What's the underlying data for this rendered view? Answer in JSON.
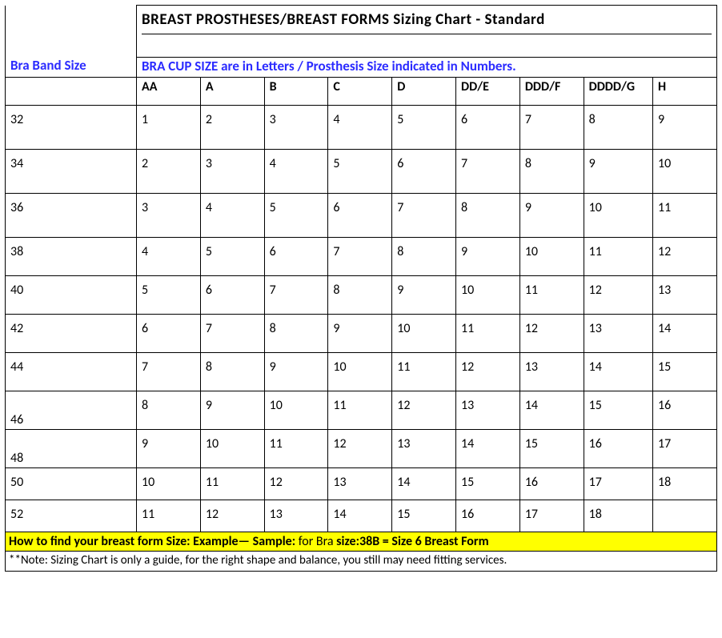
{
  "title": "BREAST PROSTHESES/BREAST FORMS Sizing Chart - Standard",
  "bandLabel": "Bra Band Size",
  "cupLabel": "BRA CUP SIZE are in Letters  / Prosthesis Size indicated in Numbers.",
  "columns": [
    "AA",
    "A",
    "B",
    "C",
    "D",
    "DD/E",
    "DDD/F",
    "DDDD/G",
    "H"
  ],
  "rows": [
    {
      "band": "32",
      "vals": [
        "1",
        "2",
        "3",
        "4",
        "5",
        "6",
        "7",
        "8",
        "9"
      ]
    },
    {
      "band": "34",
      "vals": [
        "2",
        "3",
        "4",
        "5",
        "6",
        "7",
        "8",
        "9",
        "10"
      ]
    },
    {
      "band": "36",
      "vals": [
        "3",
        "4",
        "5",
        "6",
        "7",
        "8",
        "9",
        "10",
        "11"
      ]
    },
    {
      "band": "38",
      "vals": [
        "4",
        "5",
        "6",
        "7",
        "8",
        "9",
        "10",
        "11",
        "12"
      ]
    },
    {
      "band": "40",
      "vals": [
        "5",
        "6",
        "7",
        "8",
        "9",
        "10",
        "11",
        "12",
        "13"
      ]
    },
    {
      "band": "42",
      "vals": [
        "6",
        "7",
        "8",
        "9",
        "10",
        "11",
        "12",
        "13",
        "14"
      ]
    },
    {
      "band": "44",
      "vals": [
        "7",
        "8",
        "9",
        "10",
        "11",
        "12",
        "13",
        "14",
        "15"
      ]
    },
    {
      "band": "46",
      "vals": [
        "8",
        "9",
        "10",
        "11",
        "12",
        "13",
        "14",
        "15",
        "16"
      ]
    },
    {
      "band": "48",
      "vals": [
        "9",
        "10",
        "11",
        "12",
        "13",
        "14",
        "15",
        "16",
        "17"
      ]
    },
    {
      "band": "50",
      "vals": [
        "10",
        "11",
        "12",
        "13",
        "14",
        "15",
        "16",
        "17",
        "18"
      ]
    },
    {
      "band": "52",
      "vals": [
        "11",
        "12",
        "13",
        "14",
        "15",
        "16",
        "17",
        "18",
        ""
      ]
    }
  ],
  "instruction": {
    "p1": "How to find your breast form Size: Example— Sample: ",
    "p2": "for Bra ",
    "p3": "size:38B = Size 6 Breast Form"
  },
  "note": "**Note: Sizing Chart is only a guide, for the right shape and balance, you still may need fitting services.",
  "style": {
    "highlight": "#ffff00",
    "blue": "#2b2bff",
    "border": "#000000",
    "background": "#ffffff",
    "fontBody": 16,
    "fontTitle": 19
  }
}
